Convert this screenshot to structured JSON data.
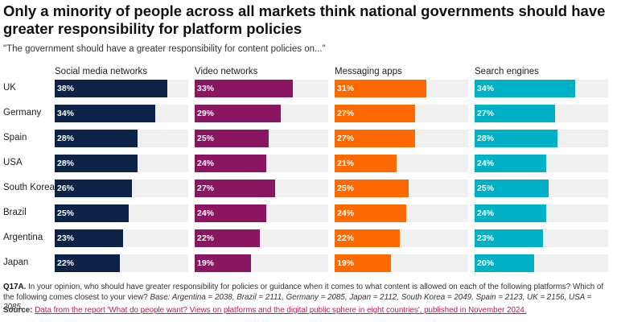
{
  "title": "Only a minority of people across all markets think national governments should have greater responsibility for platform policies",
  "subtitle": "\"The government should have a greater responsibility for content policies on...\"",
  "chart_data": {
    "type": "bar",
    "orientation": "horizontal",
    "layout": "small-multiples",
    "categories": [
      "UK",
      "Germany",
      "Spain",
      "USA",
      "South Korea",
      "Brazil",
      "Argentina",
      "Japan"
    ],
    "value_format": "percent",
    "xlim": [
      0,
      45
    ],
    "series": [
      {
        "name": "Social media networks",
        "color": "#0c2347",
        "values": [
          38,
          34,
          28,
          28,
          26,
          25,
          23,
          22
        ]
      },
      {
        "name": "Video networks",
        "color": "#8a1560",
        "values": [
          33,
          29,
          25,
          24,
          27,
          24,
          22,
          19
        ]
      },
      {
        "name": "Messaging apps",
        "color": "#ff6a00",
        "values": [
          31,
          27,
          27,
          21,
          25,
          24,
          22,
          19
        ]
      },
      {
        "name": "Search engines",
        "color": "#00b0c4",
        "values": [
          34,
          27,
          28,
          24,
          25,
          24,
          23,
          20
        ]
      }
    ],
    "track_color": "#f0f0f0"
  },
  "footnote": {
    "label": "Q17A.",
    "text": "In your opinion, who should have greater responsibility for policies or guidance when it comes to what content is allowed on each of the following platforms? Which of the following comes closest to your view?",
    "base": "Base: Argentina = 2038, Brazil = 2111, Germany = 2085, Japan = 2112, South Korea = 2049, Spain = 2123, UK = 2156, USA = 2085."
  },
  "source": {
    "label": "Source:",
    "link_text": "Data from the report 'What do people want? Views on platforms and the digital public sphere in eight countries', published in November 2024."
  }
}
